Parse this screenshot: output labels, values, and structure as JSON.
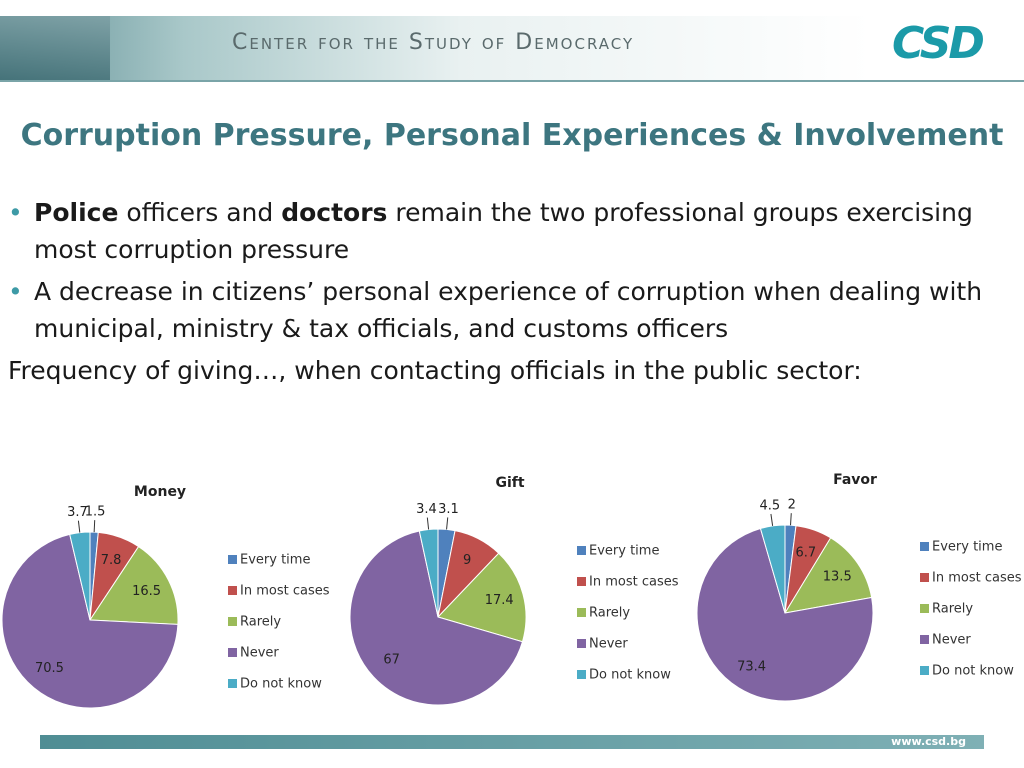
{
  "header": {
    "organization": "Center for the Study of Democracy",
    "logo": "CSD"
  },
  "title": "Corruption Pressure, Personal Experiences & Involvement",
  "bullets": [
    [
      "Police",
      " officers and ",
      "doctors",
      " remain the two professional groups exercising most corruption pressure"
    ],
    [
      "A decrease in citizens’ personal experience of corruption when dealing with municipal, ministry & tax officials, and customs officers"
    ]
  ],
  "subheading": "Frequency of giving…, when contacting officials in the public sector:",
  "footer": "www.csd.bg",
  "chart_data": [
    {
      "type": "pie",
      "title": "Money",
      "categories": [
        "Every time",
        "In most cases",
        "Rarely",
        "Never",
        "Do not know"
      ],
      "values": [
        1.5,
        7.8,
        16.5,
        70.5,
        3.7
      ],
      "colors": [
        "#4f81bd",
        "#c0504d",
        "#9bbb59",
        "#8064a2",
        "#4bacc6"
      ]
    },
    {
      "type": "pie",
      "title": "Gift",
      "categories": [
        "Every time",
        "In most cases",
        "Rarely",
        "Never",
        "Do not know"
      ],
      "values": [
        3.1,
        9,
        17.4,
        67,
        3.4
      ],
      "colors": [
        "#4f81bd",
        "#c0504d",
        "#9bbb59",
        "#8064a2",
        "#4bacc6"
      ]
    },
    {
      "type": "pie",
      "title": "Favor",
      "categories": [
        "Every time",
        "In most cases",
        "Rarely",
        "Never",
        "Do not know"
      ],
      "values": [
        2,
        6.7,
        13.5,
        73.4,
        4.5
      ],
      "colors": [
        "#4f81bd",
        "#c0504d",
        "#9bbb59",
        "#8064a2",
        "#4bacc6"
      ]
    }
  ]
}
